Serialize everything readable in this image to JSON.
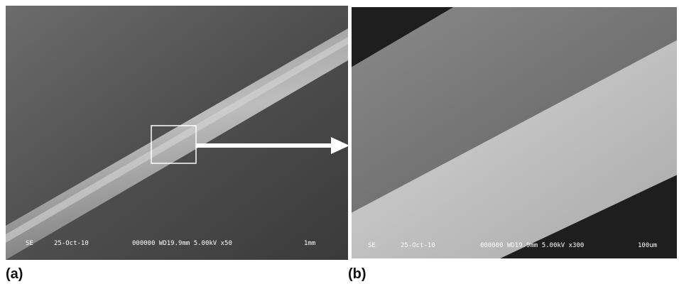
{
  "panels": [
    {
      "label": "(a)",
      "info": {
        "mode": "SE",
        "date": "25-Oct-10",
        "params": "000000 WD19.9mm 5.00kV x50",
        "scale": "1mm"
      }
    },
    {
      "label": "(b)",
      "info": {
        "mode": "SE",
        "date": "25-Oct-10",
        "params": "000000 WD19.9mm 5.00kV x300",
        "scale": "100um"
      }
    }
  ]
}
